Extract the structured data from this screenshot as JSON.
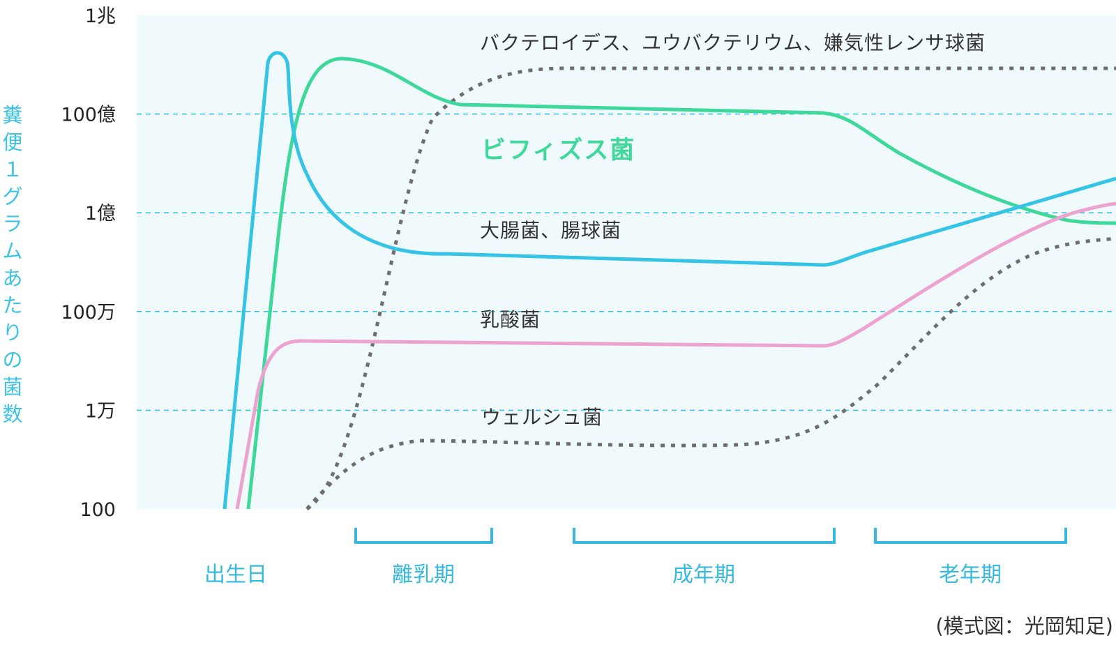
{
  "chart_data": {
    "type": "line",
    "title": "",
    "ylabel": "糞便1グラムあたりの菌数",
    "xlabel": "",
    "yscale": "log",
    "ylim": [
      100,
      1000000000000
    ],
    "y_ticks": [
      {
        "value": 100,
        "label": "100"
      },
      {
        "value": 10000,
        "label": "1万"
      },
      {
        "value": 1000000,
        "label": "100万"
      },
      {
        "value": 100000000,
        "label": "1億"
      },
      {
        "value": 10000000000,
        "label": "100億"
      },
      {
        "value": 1000000000000,
        "label": "1兆"
      }
    ],
    "grid": "horizontal dashed",
    "background": "#f0f9fb",
    "periods": [
      {
        "label": "出生日",
        "bracket": false
      },
      {
        "label": "離乳期",
        "bracket": true
      },
      {
        "label": "成年期",
        "bracket": true
      },
      {
        "label": "老年期",
        "bracket": true
      }
    ],
    "series": [
      {
        "name": "バクテロイデス、ユウバクテリウム、嫌気性レンサ球菌",
        "color": "#6e6e6e",
        "style": "dotted",
        "shape": "rises after birth to about 3×10^11 and stays near that level"
      },
      {
        "name": "ビフィズス菌",
        "color": "#3ed89a",
        "style": "solid",
        "shape": "rises to about 4×10^11, settles near 10^10 in adulthood, falls to about 6×10^7 in old age"
      },
      {
        "name": "大腸菌、腸球菌",
        "color": "#35c3e6",
        "style": "solid",
        "shape": "peak near 5×10^11 at birth, drops to about 2.5×10^7 and declines slightly, rises to about 2×10^8 in old age"
      },
      {
        "name": "乳酸菌",
        "color": "#eda3cf",
        "style": "solid",
        "shape": "about 6×10^5 from infancy through adulthood, rises to about 1.5×10^8 in old age"
      },
      {
        "name": "ウェルシュ菌",
        "color": "#6e6e6e",
        "style": "dotted",
        "shape": "about 5000 from infancy through adulthood, rises to about 5×10^7 in old age"
      }
    ]
  },
  "credit": "(模式図：光岡知足)",
  "colors": {
    "accent": "#35c3e6",
    "bifidus": "#3ed89a",
    "lactic": "#eda3cf",
    "dotted": "#6e6e6e",
    "grid": "#3ec3e3",
    "plot_bg": "#f0f9fb"
  }
}
